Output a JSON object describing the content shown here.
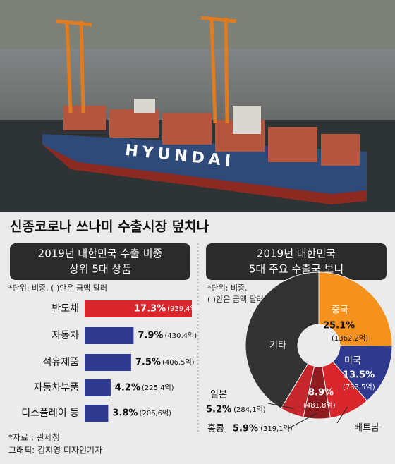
{
  "title": "신종코로나 쓰나미 수출시장 덮치나",
  "photo": {
    "ship_text": "HYUNDAI"
  },
  "chart_data": [
    {
      "type": "bar",
      "title": "2019년 대한민국 수출 비중",
      "subtitle": "상위 5대 상품",
      "note": "*단위: 비중, ( )안은 금액 달러",
      "categories": [
        "반도체",
        "자동차",
        "석유제품",
        "자동차부품",
        "디스플레이 등"
      ],
      "values": [
        17.3,
        7.9,
        7.5,
        4.2,
        3.8
      ],
      "value_labels": [
        "17.3%",
        "7.9%",
        "7.5%",
        "4.2%",
        "3.8%"
      ],
      "amounts": [
        "(939,4억)",
        "(430,4억)",
        "(406,5억)",
        "(225,4억)",
        "(206,6억)"
      ],
      "colors": [
        "#d9262c",
        "#2f3a8f",
        "#2f3a8f",
        "#2f3a8f",
        "#2f3a8f"
      ]
    },
    {
      "type": "pie",
      "title": "2019년 대한민국",
      "subtitle": "5대 주요 수출국 보니",
      "note": [
        "*단위: 비중,",
        "( )안은 금액 달러"
      ],
      "categories": [
        "중국",
        "미국",
        "베트남",
        "홍콩",
        "일본",
        "기타"
      ],
      "values": [
        25.1,
        13.5,
        8.9,
        5.9,
        5.2,
        41.4
      ],
      "value_labels": [
        "25.1%",
        "13.5%",
        "8.9%",
        "5.9%",
        "5.2%",
        null
      ],
      "amounts": [
        "(1362,2억)",
        "(733,5억)",
        "(481,8억)",
        "(319,1억)",
        "(284,1억)",
        null
      ],
      "colors": [
        "#f5921e",
        "#2f3a8f",
        "#d9262c",
        "#8e1b1f",
        "#c4262c",
        "#333333"
      ]
    }
  ],
  "footer": [
    "*자료 : 관세청",
    "그래픽: 김지영 디자인기자"
  ]
}
